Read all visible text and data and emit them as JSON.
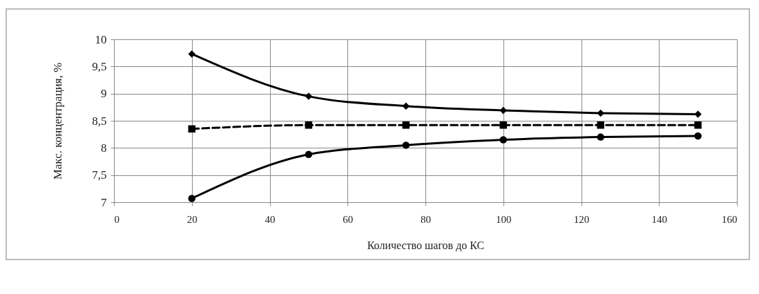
{
  "chart_data": {
    "type": "line",
    "xlabel": "Количество шагов до КС",
    "ylabel": "Макс. концентрация, %",
    "x": [
      20,
      50,
      75,
      100,
      125,
      150
    ],
    "series": [
      {
        "color": "#000000",
        "marker": "diamond",
        "line_style": "solid",
        "values": [
          9.73,
          8.95,
          8.77,
          8.69,
          8.64,
          8.62
        ]
      },
      {
        "color": "#000000",
        "marker": "square",
        "line_style": "dashed",
        "values": [
          8.35,
          8.42,
          8.42,
          8.42,
          8.42,
          8.42
        ]
      },
      {
        "color": "#000000",
        "marker": "circle",
        "line_style": "solid",
        "values": [
          7.07,
          7.88,
          8.05,
          8.15,
          8.2,
          8.22
        ]
      }
    ],
    "xlim": [
      0,
      160
    ],
    "xticks": [
      0,
      20,
      40,
      60,
      80,
      100,
      120,
      140,
      160
    ],
    "ylim": [
      7,
      10
    ],
    "yticks": [
      7,
      {
        "value": 7.5,
        "label": "7,5"
      },
      8,
      {
        "value": 8.5,
        "label": "8,5"
      },
      9,
      {
        "value": 9.5,
        "label": "9,5"
      },
      10
    ],
    "grid": true
  }
}
